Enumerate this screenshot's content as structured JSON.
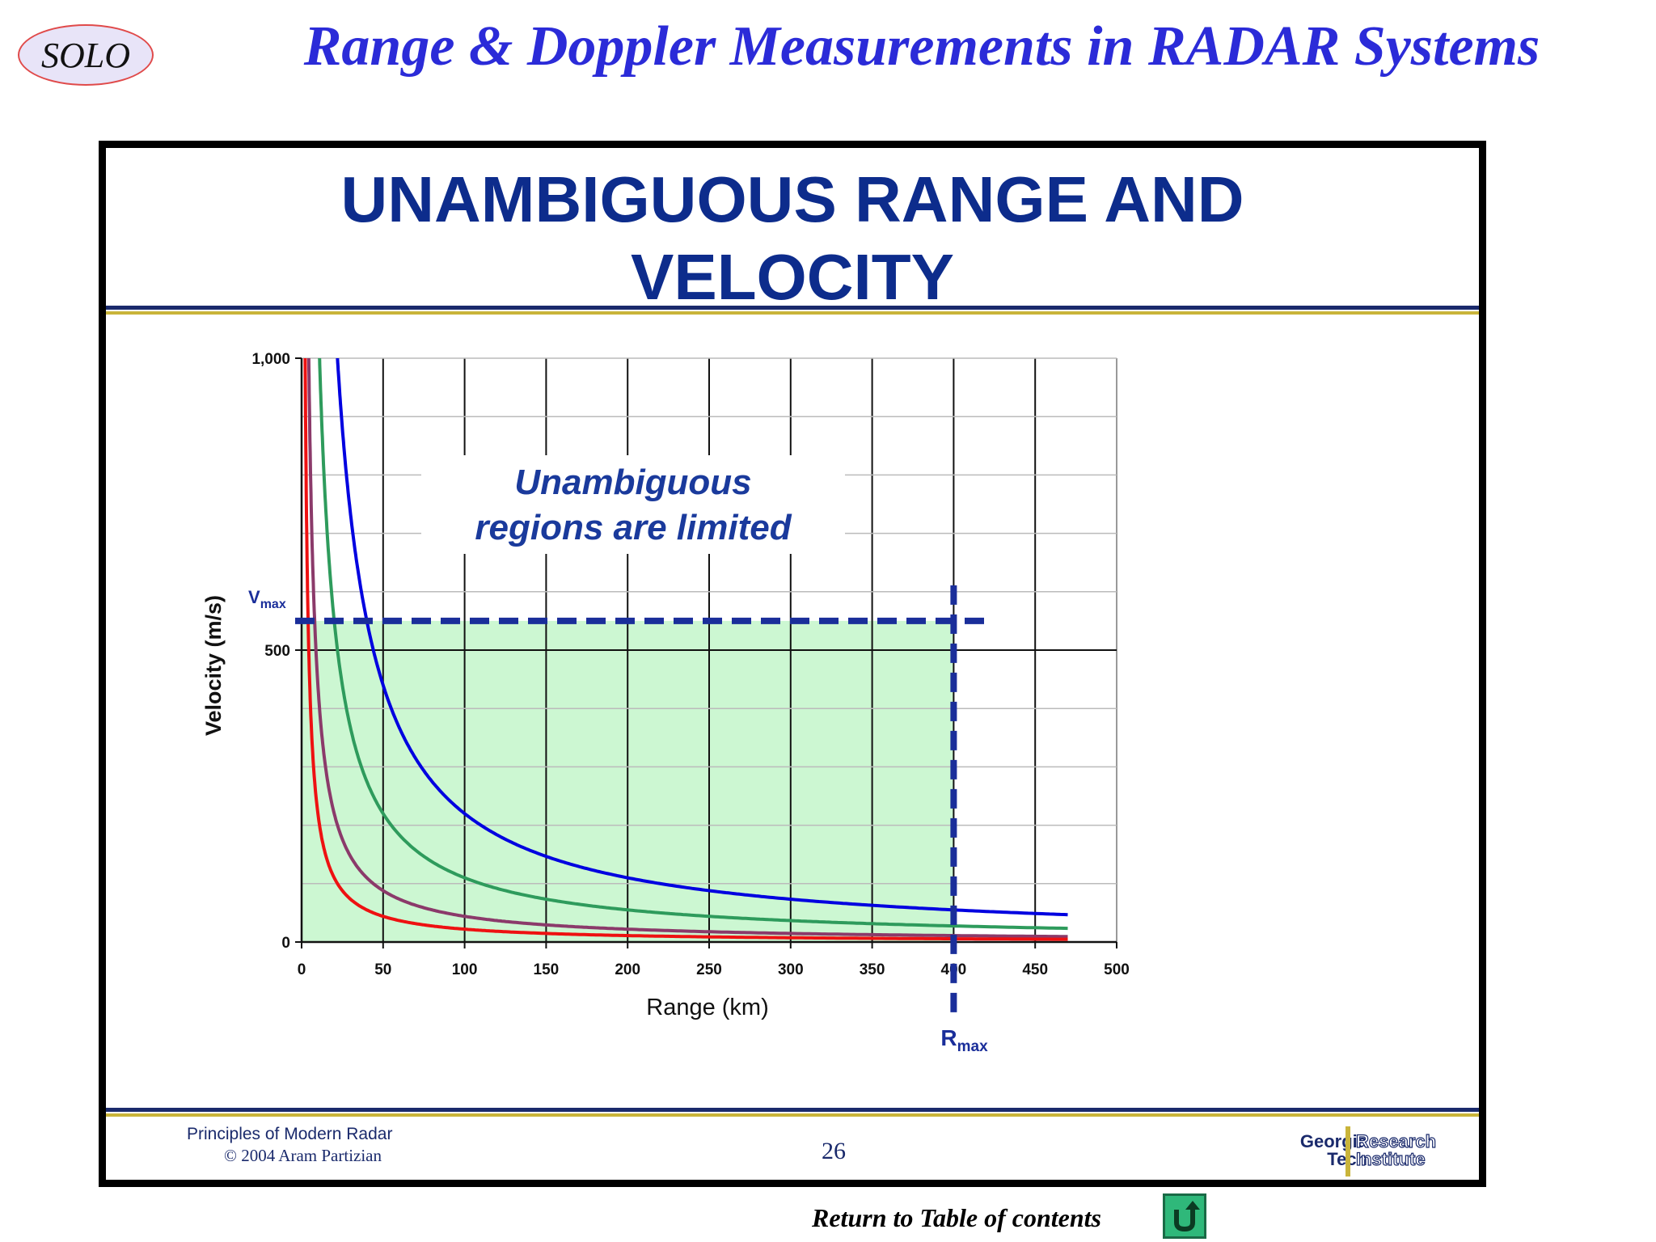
{
  "header": {
    "logo_text": "SOLO",
    "title": "Range & Doppler Measurements in RADAR Systems"
  },
  "slide": {
    "title_line1": "UNAMBIGUOUS RANGE AND",
    "title_line2": "VELOCITY",
    "footer_left_line1": "Principles of Modern Radar",
    "footer_left_line2": "© 2004 Aram Partizian",
    "page_number": "26",
    "logo_left_line1": "Georgia",
    "logo_left_line2": "Tech",
    "logo_right_line1": "Research",
    "logo_right_line2": "Institute"
  },
  "footer": {
    "return_label": "Return to Table of contents",
    "return_icon": "u-turn-arrow-icon"
  },
  "chart_data": {
    "type": "line",
    "title": "",
    "xlabel": "Range (km)",
    "ylabel": "Velocity (m/s)",
    "xlim": [
      0,
      500
    ],
    "ylim": [
      0,
      1000
    ],
    "x_ticks": [
      "0",
      "50",
      "100",
      "150",
      "200",
      "250",
      "300",
      "350",
      "400",
      "450",
      "500"
    ],
    "x_tick_values": [
      0,
      50,
      100,
      150,
      200,
      250,
      300,
      350,
      400,
      450,
      500
    ],
    "y_ticks": [
      "0",
      "500",
      "1,000"
    ],
    "y_tick_values": [
      0,
      500,
      1000
    ],
    "grid": true,
    "vertical_gridline_step": 50,
    "horizontal_gridline_step": 100,
    "annotation": {
      "line1": "Unambiguous",
      "line2": "regions are limited",
      "color": "#1a3a9c"
    },
    "vmax": {
      "label": "V",
      "sub": "max",
      "value": 550
    },
    "rmax": {
      "label": "R",
      "sub": "max",
      "value": 400
    },
    "region_fill": "#ccf7d2",
    "limit_line_color": "#1a2e9a",
    "series": [
      {
        "color": "#0000e0",
        "product": 22000,
        "x_end": 470
      },
      {
        "color": "#2e9b5c",
        "product": 11000,
        "x_end": 470
      },
      {
        "color": "#8b3a6a",
        "product": 4400,
        "x_end": 470
      },
      {
        "color": "#ee1111",
        "product": 2200,
        "x_end": 470
      }
    ]
  }
}
